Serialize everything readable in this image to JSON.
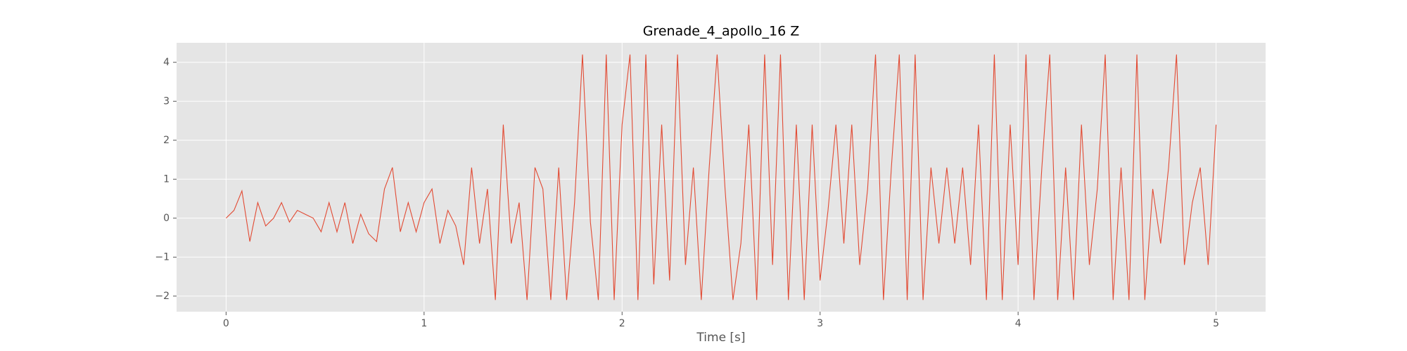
{
  "chart_data": {
    "type": "line",
    "title": "Grenade_4_apollo_16 Z",
    "x_label": "Time [s]",
    "xlim": [
      -0.25,
      5.25
    ],
    "ylim": [
      -2.4,
      4.5
    ],
    "xticks": [
      0,
      1,
      2,
      3,
      4,
      5
    ],
    "yticks": [
      {
        "value": -2,
        "label": "−2"
      },
      {
        "value": -1,
        "label": "−1"
      },
      0,
      1,
      2,
      3,
      4
    ],
    "grid": true,
    "x": [
      0,
      0.04,
      0.08,
      0.12,
      0.16,
      0.2,
      0.24,
      0.28,
      0.32,
      0.36,
      0.4,
      0.44,
      0.48,
      0.52,
      0.56,
      0.6,
      0.64,
      0.68,
      0.72,
      0.76,
      0.8,
      0.84,
      0.88,
      0.92,
      0.96,
      1.0,
      1.04,
      1.08,
      1.12,
      1.16,
      1.2,
      1.24,
      1.28,
      1.32,
      1.36,
      1.4,
      1.44,
      1.48,
      1.52,
      1.56,
      1.6,
      1.64,
      1.68,
      1.72,
      1.76,
      1.8,
      1.84,
      1.88,
      1.92,
      1.96,
      2.0,
      2.04,
      2.08,
      2.12,
      2.16,
      2.2,
      2.24,
      2.28,
      2.32,
      2.36,
      2.4,
      2.44,
      2.48,
      2.52,
      2.56,
      2.6,
      2.64,
      2.68,
      2.72,
      2.76,
      2.8,
      2.84,
      2.88,
      2.92,
      2.96,
      3.0,
      3.04,
      3.08,
      3.12,
      3.16,
      3.2,
      3.24,
      3.28,
      3.32,
      3.36,
      3.4,
      3.44,
      3.48,
      3.52,
      3.56,
      3.6,
      3.64,
      3.68,
      3.72,
      3.76,
      3.8,
      3.84,
      3.88,
      3.92,
      3.96,
      4.0,
      4.04,
      4.08,
      4.12,
      4.16,
      4.2,
      4.24,
      4.28,
      4.32,
      4.36,
      4.4,
      4.44,
      4.48,
      4.52,
      4.56,
      4.6,
      4.64,
      4.68,
      4.72,
      4.76,
      4.8,
      4.84,
      4.88,
      4.92,
      4.96,
      5.0
    ],
    "series": [
      {
        "color": "#e24a33",
        "values": [
          0,
          0.2,
          0.7,
          -0.6,
          0.4,
          -0.2,
          0,
          0.4,
          -0.1,
          0.2,
          0.1,
          0,
          -0.35,
          0.4,
          -0.35,
          0.4,
          -0.65,
          0.1,
          -0.4,
          -0.6,
          0.75,
          1.3,
          -0.35,
          0.4,
          -0.35,
          0.4,
          0.75,
          -0.65,
          0.2,
          -0.2,
          -1.2,
          1.3,
          -0.65,
          0.75,
          -2.1,
          2.4,
          -0.65,
          0.4,
          -2.1,
          1.3,
          0.75,
          -2.1,
          1.3,
          -2.1,
          0.4,
          4.2,
          -0.1,
          -2.1,
          4.2,
          -2.1,
          2.4,
          4.2,
          -2.1,
          4.2,
          -1.7,
          2.4,
          -1.6,
          4.2,
          -1.2,
          1.3,
          -2.1,
          1.3,
          4.2,
          0.75,
          -2.1,
          -0.65,
          2.4,
          -2.1,
          4.2,
          -1.2,
          4.2,
          -2.1,
          2.4,
          -2.1,
          2.4,
          -1.6,
          0.2,
          2.4,
          -0.65,
          2.4,
          -1.2,
          0.75,
          4.2,
          -2.1,
          1.3,
          4.2,
          -2.1,
          4.2,
          -2.1,
          1.3,
          -0.65,
          1.3,
          -0.65,
          1.3,
          -1.2,
          2.4,
          -2.1,
          4.2,
          -2.1,
          2.4,
          -1.2,
          4.2,
          -2.1,
          1.3,
          4.2,
          -2.1,
          1.3,
          -2.1,
          2.4,
          -1.2,
          0.75,
          4.2,
          -2.1,
          1.3,
          -2.1,
          4.2,
          -2.1,
          0.75,
          -0.65,
          1.3,
          4.2,
          -1.2,
          0.4,
          1.3,
          -1.2,
          2.4
        ]
      }
    ]
  }
}
